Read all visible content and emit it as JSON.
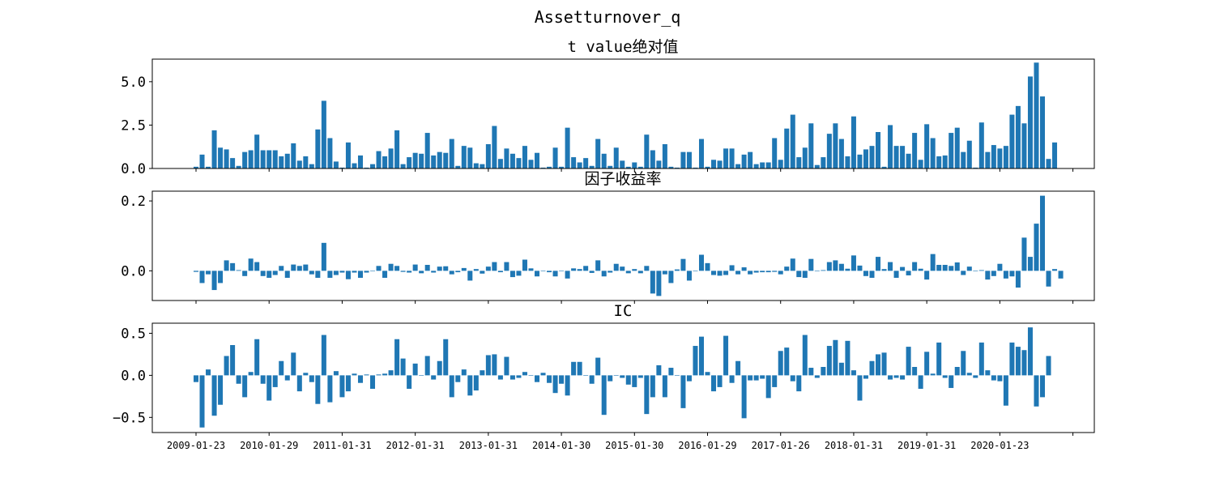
{
  "suptitle": "Assetturnover_q",
  "colors": {
    "bar": "#1f77b4",
    "axis": "#000000"
  },
  "chart_data": [
    {
      "type": "bar",
      "id": "tvalue",
      "title": "t value绝对值",
      "ylim": [
        0,
        6.3
      ],
      "yticks": [
        0.0,
        2.5,
        5.0
      ],
      "yticklabels": [
        "0.0",
        "2.5",
        "5.0"
      ],
      "values": [
        0.1,
        0.8,
        0.1,
        2.2,
        1.2,
        1.1,
        0.6,
        0.15,
        0.95,
        1.05,
        1.95,
        1.05,
        1.05,
        1.05,
        0.7,
        0.85,
        1.45,
        0.45,
        0.7,
        0.25,
        2.25,
        3.9,
        1.75,
        0.4,
        0.05,
        1.5,
        0.3,
        0.75,
        0.05,
        0.25,
        1.0,
        0.7,
        1.15,
        2.2,
        0.25,
        0.65,
        0.9,
        0.85,
        2.05,
        0.75,
        0.95,
        0.9,
        1.7,
        0.15,
        1.3,
        1.2,
        0.3,
        0.25,
        1.4,
        2.45,
        0.55,
        1.15,
        0.85,
        0.6,
        1.3,
        0.5,
        0.9,
        0.05,
        0.1,
        1.2,
        0.1,
        2.35,
        0.65,
        0.35,
        0.6,
        0.15,
        1.7,
        0.85,
        0.15,
        1.2,
        0.45,
        0.1,
        0.35,
        0.1,
        1.95,
        1.05,
        0.45,
        1.4,
        0.1,
        0.05,
        0.95,
        0.95,
        0.05,
        1.7,
        0.1,
        0.5,
        0.45,
        1.15,
        1.15,
        0.25,
        0.8,
        0.95,
        0.25,
        0.35,
        0.35,
        1.75,
        0.5,
        2.3,
        3.1,
        0.65,
        1.2,
        2.6,
        0.2,
        0.65,
        2.0,
        2.6,
        1.7,
        0.7,
        3.0,
        0.8,
        1.1,
        1.3,
        2.1,
        0.1,
        2.5,
        1.3,
        1.3,
        0.85,
        2.05,
        0.5,
        2.55,
        1.75,
        0.7,
        0.75,
        2.05,
        2.35,
        0.95,
        1.6,
        0.05,
        2.65,
        0.95,
        1.35,
        1.15,
        1.3,
        3.1,
        3.6,
        2.6,
        5.3,
        6.1,
        4.15,
        0.55,
        1.5
      ]
    },
    {
      "type": "bar",
      "id": "factor_return",
      "title": "因子收益率",
      "ylim": [
        -0.085,
        0.228
      ],
      "yticks": [
        0.0,
        0.2
      ],
      "yticklabels": [
        "0.0",
        "0.2"
      ],
      "values": [
        -0.003,
        -0.035,
        -0.01,
        -0.055,
        -0.035,
        0.03,
        0.022,
        0.002,
        -0.015,
        0.035,
        0.025,
        -0.015,
        -0.02,
        -0.012,
        0.014,
        -0.02,
        0.018,
        0.014,
        0.018,
        -0.01,
        -0.02,
        0.08,
        -0.02,
        -0.012,
        -0.005,
        -0.024,
        -0.005,
        -0.02,
        -0.005,
        0.0,
        0.014,
        -0.02,
        0.02,
        0.014,
        -0.003,
        -0.005,
        0.018,
        -0.007,
        0.017,
        -0.005,
        0.012,
        0.013,
        -0.01,
        -0.004,
        0.008,
        -0.028,
        0.005,
        -0.008,
        0.012,
        0.025,
        -0.004,
        0.025,
        -0.018,
        -0.014,
        0.032,
        0.007,
        -0.016,
        0.0,
        -0.004,
        -0.016,
        0.0,
        -0.022,
        0.007,
        0.005,
        0.014,
        -0.006,
        0.03,
        -0.016,
        -0.005,
        0.02,
        0.012,
        -0.007,
        0.005,
        -0.007,
        0.014,
        -0.065,
        -0.072,
        -0.01,
        -0.035,
        0.004,
        0.034,
        -0.028,
        0.0,
        0.046,
        0.022,
        -0.012,
        -0.014,
        -0.012,
        0.016,
        -0.01,
        0.01,
        -0.01,
        -0.005,
        -0.004,
        -0.004,
        -0.003,
        -0.01,
        0.012,
        0.035,
        -0.018,
        -0.02,
        0.034,
        0.0,
        0.002,
        0.025,
        0.03,
        0.02,
        0.006,
        0.044,
        0.015,
        -0.015,
        -0.02,
        0.04,
        0.005,
        0.025,
        -0.02,
        0.011,
        -0.013,
        0.025,
        0.006,
        -0.025,
        0.048,
        0.017,
        0.017,
        0.014,
        0.024,
        -0.012,
        0.012,
        0.0,
        0.002,
        -0.025,
        -0.015,
        0.02,
        -0.022,
        -0.016,
        -0.048,
        0.095,
        0.04,
        0.135,
        0.215,
        -0.045,
        0.005,
        -0.022
      ]
    },
    {
      "type": "bar",
      "id": "ic",
      "title": "IC",
      "ylim": [
        -0.68,
        0.62
      ],
      "yticks": [
        -0.5,
        0.0,
        0.5
      ],
      "yticklabels": [
        "−0.5",
        "0.0",
        "0.5"
      ],
      "values": [
        -0.08,
        -0.62,
        0.07,
        -0.48,
        -0.35,
        0.23,
        0.36,
        -0.1,
        -0.26,
        0.04,
        0.43,
        -0.1,
        -0.3,
        -0.14,
        0.17,
        -0.06,
        0.27,
        -0.19,
        0.03,
        -0.08,
        -0.34,
        0.48,
        -0.32,
        0.05,
        -0.26,
        -0.19,
        0.02,
        -0.09,
        0.01,
        -0.16,
        0.01,
        0.02,
        0.06,
        0.43,
        0.2,
        -0.16,
        0.14,
        0.0,
        0.23,
        -0.05,
        0.17,
        0.43,
        -0.26,
        -0.08,
        0.07,
        -0.24,
        -0.18,
        0.06,
        0.24,
        0.25,
        -0.05,
        0.22,
        -0.05,
        -0.03,
        0.04,
        0.0,
        -0.08,
        0.03,
        -0.09,
        -0.21,
        -0.1,
        -0.24,
        0.16,
        0.16,
        0.0,
        -0.1,
        0.21,
        -0.47,
        -0.07,
        0.0,
        -0.03,
        -0.11,
        -0.14,
        -0.03,
        -0.46,
        -0.26,
        0.12,
        -0.26,
        0.09,
        0.0,
        -0.39,
        -0.07,
        0.35,
        0.46,
        0.04,
        -0.19,
        -0.14,
        0.47,
        -0.09,
        0.17,
        -0.51,
        -0.06,
        -0.06,
        -0.04,
        -0.27,
        -0.14,
        0.29,
        0.33,
        -0.07,
        -0.19,
        0.48,
        0.09,
        -0.03,
        0.1,
        0.35,
        0.42,
        0.15,
        0.41,
        0.06,
        -0.3,
        -0.04,
        0.17,
        0.25,
        0.27,
        -0.05,
        -0.03,
        -0.05,
        0.34,
        0.1,
        -0.16,
        0.28,
        0.02,
        0.39,
        -0.03,
        -0.15,
        0.1,
        0.29,
        0.03,
        -0.03,
        0.39,
        0.06,
        -0.06,
        -0.07,
        -0.36,
        0.39,
        0.34,
        0.3,
        0.57,
        -0.37,
        -0.26,
        0.23
      ]
    }
  ],
  "xticklabels": [
    "2009-01-23",
    "2010-01-29",
    "2011-01-31",
    "2012-01-31",
    "2013-01-31",
    "2014-01-30",
    "2015-01-30",
    "2016-01-29",
    "2017-01-26",
    "2018-01-31",
    "2019-01-31",
    "2020-01-23",
    ""
  ]
}
